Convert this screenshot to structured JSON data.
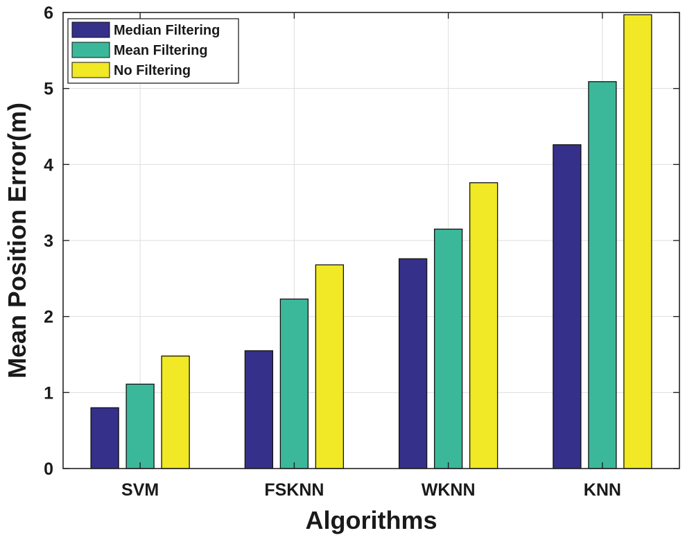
{
  "chart_data": {
    "type": "bar",
    "title": "",
    "xlabel": "Algorithms",
    "ylabel": "Mean Position Error(m)",
    "ylim": [
      0,
      6
    ],
    "yticks": [
      0,
      1,
      2,
      3,
      4,
      5,
      6
    ],
    "grid": true,
    "legend_position": "top-left",
    "categories": [
      "SVM",
      "FSKNN",
      "WKNN",
      "KNN"
    ],
    "series": [
      {
        "name": "Median Filtering",
        "color": "#35308a",
        "values": [
          0.8,
          1.55,
          2.76,
          4.26
        ]
      },
      {
        "name": "Mean Filtering",
        "color": "#3bb89a",
        "values": [
          1.11,
          2.23,
          3.15,
          5.09
        ]
      },
      {
        "name": "No Filtering",
        "color": "#f1e826",
        "values": [
          1.48,
          2.68,
          3.76,
          5.97
        ]
      }
    ]
  }
}
